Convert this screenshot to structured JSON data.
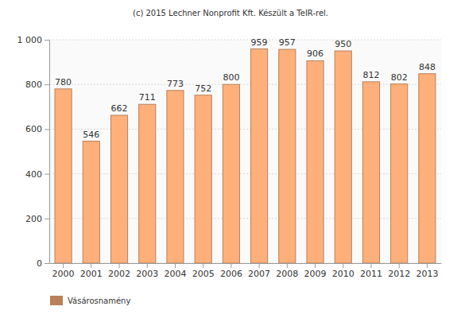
{
  "chart_data": {
    "type": "bar",
    "title": "(c) 2015 Lechner Nonprofit Kft. Készült a TeIR-rel.",
    "categories": [
      "2000",
      "2001",
      "2002",
      "2003",
      "2004",
      "2005",
      "2006",
      "2007",
      "2008",
      "2009",
      "2010",
      "2011",
      "2012",
      "2013"
    ],
    "series": [
      {
        "name": "Vásárosnamény",
        "color": "#ffb07a",
        "values": [
          780,
          546,
          662,
          711,
          773,
          752,
          800,
          959,
          957,
          906,
          950,
          812,
          802,
          848
        ]
      }
    ],
    "ylim": [
      0,
      1000
    ],
    "yticks": [
      0,
      200,
      400,
      600,
      800,
      {
        "value": 1000,
        "label": "1 000"
      }
    ],
    "grid": true,
    "data_labels": true,
    "legend": "bottom-left"
  }
}
